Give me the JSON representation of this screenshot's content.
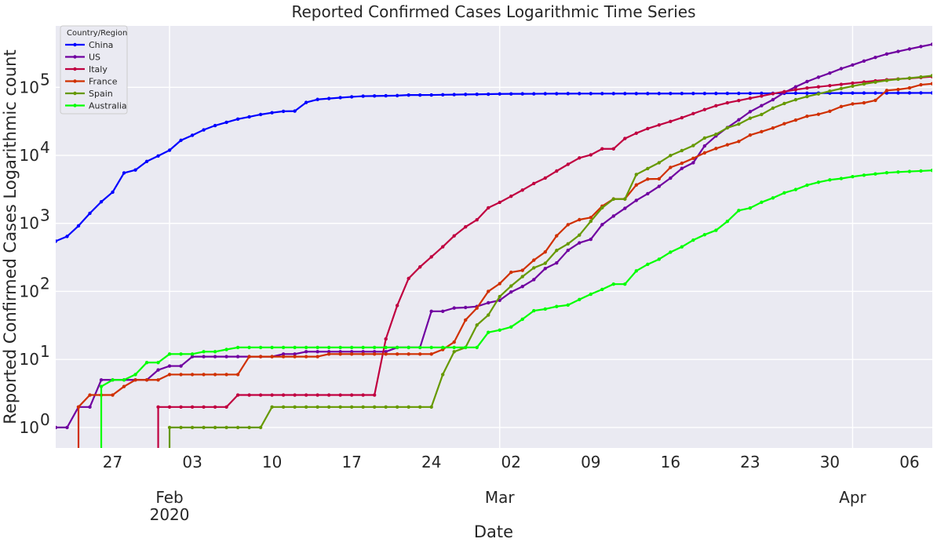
{
  "chart_data": {
    "type": "line",
    "title": "Reported Confirmed Cases Logarithmic Time Series",
    "xlabel": "Date",
    "ylabel": "Reported Confirmed Cases Logarithmic count",
    "yscale": "log",
    "ylim": [
      0.5,
      800000
    ],
    "xlim": [
      "2020-01-22",
      "2020-04-08"
    ],
    "grid": true,
    "legend": {
      "title": "Country/Region",
      "placement": "top-left"
    },
    "x_ticks": [
      {
        "date": "2020-01-27",
        "label": "27"
      },
      {
        "date": "2020-02-03",
        "label": "03"
      },
      {
        "date": "2020-02-10",
        "label": "10"
      },
      {
        "date": "2020-02-17",
        "label": "17"
      },
      {
        "date": "2020-02-24",
        "label": "24"
      },
      {
        "date": "2020-03-02",
        "label": "02"
      },
      {
        "date": "2020-03-09",
        "label": "09"
      },
      {
        "date": "2020-03-16",
        "label": "16"
      },
      {
        "date": "2020-03-23",
        "label": "23"
      },
      {
        "date": "2020-03-30",
        "label": "30"
      },
      {
        "date": "2020-04-06",
        "label": "06"
      }
    ],
    "month_ticks": [
      {
        "date": "2020-02-01",
        "label": "Feb",
        "sublabel": "2020"
      },
      {
        "date": "2020-03-01",
        "label": "Mar",
        "sublabel": ""
      },
      {
        "date": "2020-04-01",
        "label": "Apr",
        "sublabel": ""
      }
    ],
    "y_ticks": [
      {
        "value": 1,
        "label": "10",
        "exp": "0"
      },
      {
        "value": 10,
        "label": "10",
        "exp": "1"
      },
      {
        "value": 100,
        "label": "10",
        "exp": "2"
      },
      {
        "value": 1000,
        "label": "10",
        "exp": "3"
      },
      {
        "value": 10000,
        "label": "10",
        "exp": "4"
      },
      {
        "value": 100000,
        "label": "10",
        "exp": "5"
      }
    ],
    "start_date": "2020-01-22",
    "series": [
      {
        "name": "China",
        "color": "#0000ff",
        "values": [
          548,
          643,
          920,
          1406,
          2075,
          2877,
          5509,
          6087,
          8141,
          9802,
          11891,
          16630,
          19716,
          23707,
          27440,
          30587,
          34110,
          36814,
          39829,
          42354,
          44386,
          44759,
          59895,
          66358,
          68413,
          70513,
          72434,
          74211,
          74619,
          75077,
          75550,
          77001,
          77022,
          77241,
          77754,
          78166,
          78600,
          78928,
          79356,
          79932,
          80136,
          80261,
          80386,
          80537,
          80690,
          80770,
          80823,
          80860,
          80887,
          80921,
          80932,
          80945,
          80977,
          81003,
          81033,
          81058,
          81102,
          81156,
          81250,
          81305,
          81435,
          81498,
          81591,
          81661,
          81782,
          81897,
          81999,
          82122,
          82198,
          82279,
          82361,
          82432,
          82511,
          82543,
          82602,
          82665,
          82718,
          82809
        ]
      },
      {
        "name": "US",
        "color": "#7000a0",
        "values": [
          1,
          1,
          2,
          2,
          5,
          5,
          5,
          5,
          5,
          7,
          8,
          8,
          11,
          11,
          11,
          11,
          11,
          11,
          11,
          11,
          12,
          12,
          13,
          13,
          13,
          13,
          13,
          13,
          13,
          13,
          15,
          15,
          15,
          51,
          51,
          57,
          58,
          60,
          68,
          74,
          98,
          118,
          149,
          217,
          262,
          402,
          518,
          583,
          959,
          1281,
          1663,
          2179,
          2727,
          3499,
          4632,
          6421,
          7783,
          13747,
          19273,
          25600,
          33276,
          43847,
          53740,
          65778,
          83836,
          101657,
          121465,
          140909,
          161831,
          188172,
          213242,
          243622,
          275367,
          308650,
          336802,
          366317,
          397121,
          428654
        ]
      },
      {
        "name": "Italy",
        "color": "#c00040",
        "values": [
          null,
          null,
          null,
          null,
          null,
          null,
          null,
          null,
          null,
          2,
          2,
          2,
          2,
          2,
          2,
          2,
          3,
          3,
          3,
          3,
          3,
          3,
          3,
          3,
          3,
          3,
          3,
          3,
          3,
          20,
          62,
          155,
          229,
          322,
          453,
          655,
          888,
          1128,
          1694,
          2036,
          2502,
          3089,
          3858,
          4636,
          5883,
          7375,
          9172,
          10149,
          12462,
          12462,
          17660,
          21157,
          24747,
          27980,
          31506,
          35713,
          41035,
          47021,
          53578,
          59138,
          63927,
          69176,
          74386,
          80589,
          86498,
          92472,
          97689,
          101739,
          105792,
          110574,
          115242,
          119827,
          124632,
          128948,
          132547,
          135586,
          139422,
          143626
        ]
      },
      {
        "name": "France",
        "color": "#d03000",
        "values": [
          null,
          null,
          2,
          3,
          3,
          3,
          4,
          5,
          5,
          5,
          6,
          6,
          6,
          6,
          6,
          6,
          6,
          11,
          11,
          11,
          11,
          11,
          11,
          11,
          12,
          12,
          12,
          12,
          12,
          12,
          12,
          12,
          12,
          12,
          14,
          18,
          38,
          57,
          100,
          130,
          191,
          204,
          288,
          380,
          656,
          957,
          1134,
          1217,
          1792,
          2289,
          2289,
          3672,
          4480,
          4513,
          6650,
          7652,
          9043,
          10871,
          12612,
          14282,
          16018,
          19856,
          22304,
          25233,
          29155,
          32964,
          37575,
          40174,
          44550,
          52128,
          56989,
          59105,
          64338,
          89953,
          92839,
          98010,
          109069,
          112950
        ]
      },
      {
        "name": "Spain",
        "color": "#669900",
        "values": [
          null,
          null,
          null,
          null,
          null,
          null,
          null,
          null,
          null,
          null,
          1,
          1,
          1,
          1,
          1,
          1,
          1,
          1,
          1,
          2,
          2,
          2,
          2,
          2,
          2,
          2,
          2,
          2,
          2,
          2,
          2,
          2,
          2,
          2,
          6,
          13,
          15,
          32,
          45,
          84,
          120,
          165,
          222,
          259,
          400,
          500,
          673,
          1073,
          1695,
          2277,
          2277,
          5232,
          6391,
          7798,
          9942,
          11748,
          13910,
          17963,
          20410,
          25374,
          28768,
          35136,
          39885,
          49515,
          57786,
          65719,
          73235,
          80110,
          87956,
          95923,
          104118,
          112065,
          119199,
          126168,
          131646,
          136675,
          141942,
          148220
        ]
      },
      {
        "name": "Australia",
        "color": "#00ff00",
        "values": [
          null,
          null,
          null,
          null,
          4,
          5,
          5,
          6,
          9,
          9,
          12,
          12,
          12,
          13,
          13,
          14,
          15,
          15,
          15,
          15,
          15,
          15,
          15,
          15,
          15,
          15,
          15,
          15,
          15,
          15,
          15,
          15,
          15,
          15,
          15,
          15,
          15,
          15,
          25,
          27,
          30,
          39,
          52,
          55,
          60,
          63,
          76,
          91,
          107,
          128,
          128,
          200,
          250,
          297,
          377,
          452,
          568,
          681,
          791,
          1071,
          1549,
          1682,
          2044,
          2364,
          2810,
          3143,
          3640,
          4028,
          4361,
          4559,
          4862,
          5116,
          5330,
          5550,
          5687,
          5797,
          5895,
          6010
        ]
      }
    ]
  }
}
